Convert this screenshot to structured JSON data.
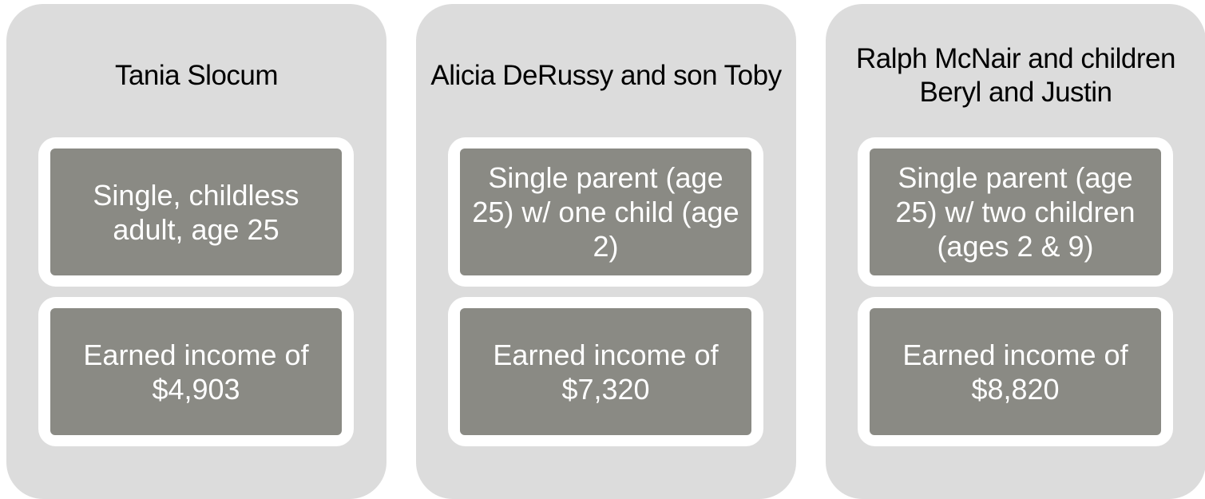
{
  "cards": [
    {
      "name": "Tania Slocum",
      "description": "Single, childless adult, age 25",
      "income": "Earned income of $4,903"
    },
    {
      "name": "Alicia DeRussy and son Toby",
      "description": "Single parent (age 25) w/ one child (age 2)",
      "income": "Earned income of $7,320"
    },
    {
      "name": "Ralph McNair and children Beryl and Justin",
      "description": "Single parent (age 25) w/ two children (ages 2 & 9)",
      "income": "Earned income of $8,820"
    }
  ]
}
